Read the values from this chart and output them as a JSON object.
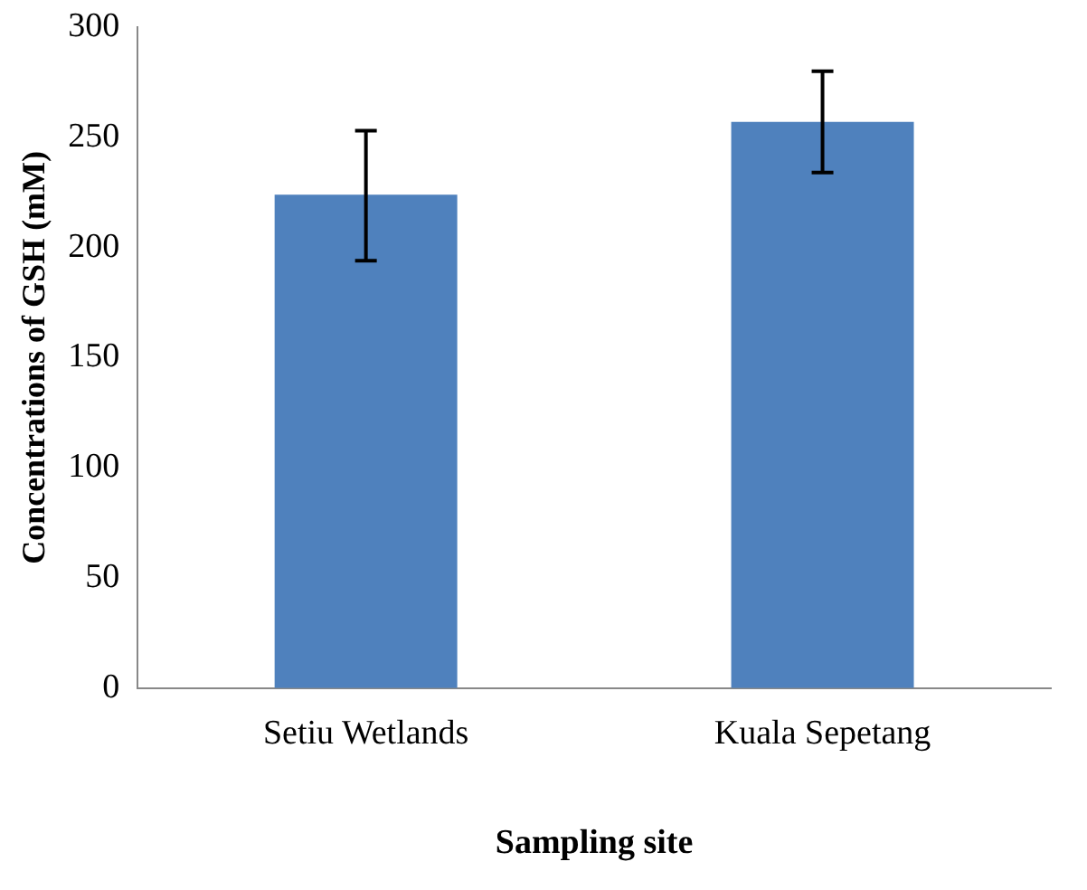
{
  "chart_data": {
    "type": "bar",
    "xlabel": "Sampling site",
    "ylabel": "Concentrations of GSH (mM)",
    "categories": [
      "Setiu Wetlands",
      "Kuala Sepetang"
    ],
    "values": [
      224,
      257
    ],
    "errors": [
      [
        194,
        253
      ],
      23
    ],
    "color": "#4f81bd",
    "ylim": [
      0,
      300
    ],
    "yticks": [
      0,
      50,
      100,
      150,
      200,
      250,
      300
    ],
    "grid": false,
    "legend": false
  }
}
